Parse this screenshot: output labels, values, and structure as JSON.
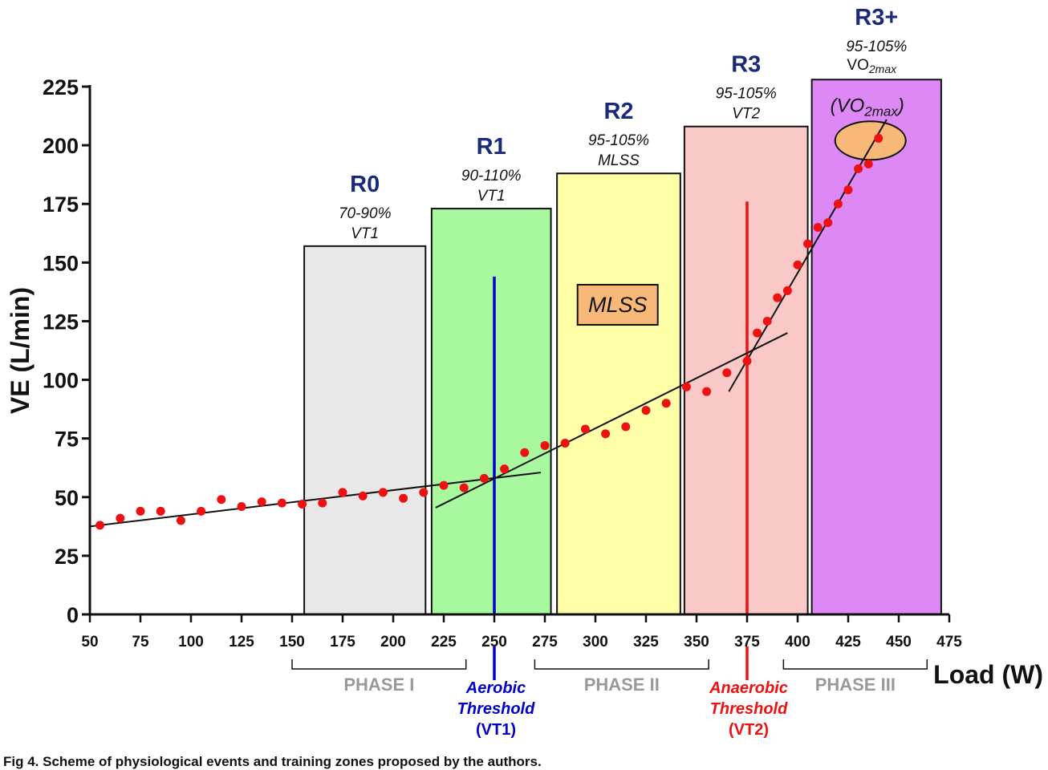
{
  "chart_data": {
    "type": "scatter",
    "ylabel": "VE (L/min)",
    "xlabel": "Load (W)",
    "xlim": [
      50,
      475
    ],
    "ylim": [
      0,
      225
    ],
    "x_ticks": [
      50,
      75,
      100,
      125,
      150,
      175,
      200,
      225,
      250,
      275,
      300,
      325,
      350,
      375,
      400,
      425,
      450,
      475
    ],
    "y_ticks": [
      0,
      25,
      50,
      75,
      100,
      125,
      150,
      175,
      200,
      225
    ],
    "zones": [
      {
        "name": "R0",
        "range": "70-90%",
        "ref": "VT1",
        "x_start": 156,
        "x_end": 216,
        "top": 157,
        "color": "#e8e8e8"
      },
      {
        "name": "R1",
        "range": "90-110%",
        "ref": "VT1",
        "x_start": 219,
        "x_end": 278,
        "top": 173,
        "color": "#a8f8a0"
      },
      {
        "name": "R2",
        "range": "95-105%",
        "ref": "MLSS",
        "x_start": 281,
        "x_end": 342,
        "top": 188,
        "color": "#ffffa8"
      },
      {
        "name": "R3",
        "range": "95-105%",
        "ref": "VT2",
        "x_start": 344,
        "x_end": 405,
        "top": 208,
        "color": "#fbc8c8"
      },
      {
        "name": "R3+",
        "range": "95-105%",
        "ref_main": "VO",
        "ref_sub": "2max",
        "x_start": 407,
        "x_end": 471,
        "top": 228,
        "color": "#dd88f5"
      }
    ],
    "points": [
      [
        55,
        38
      ],
      [
        65,
        41
      ],
      [
        75,
        44
      ],
      [
        85,
        44
      ],
      [
        95,
        40
      ],
      [
        105,
        44
      ],
      [
        115,
        49
      ],
      [
        125,
        46
      ],
      [
        135,
        48
      ],
      [
        145,
        47.5
      ],
      [
        155,
        47
      ],
      [
        165,
        47.5
      ],
      [
        175,
        52
      ],
      [
        185,
        50.5
      ],
      [
        195,
        52
      ],
      [
        205,
        49.5
      ],
      [
        215,
        52
      ],
      [
        225,
        55
      ],
      [
        235,
        54
      ],
      [
        245,
        58
      ],
      [
        255,
        62
      ],
      [
        265,
        69
      ],
      [
        275,
        72
      ],
      [
        285,
        73
      ],
      [
        295,
        79
      ],
      [
        305,
        77
      ],
      [
        315,
        80
      ],
      [
        325,
        87
      ],
      [
        335,
        90
      ],
      [
        345,
        97
      ],
      [
        355,
        95
      ],
      [
        365,
        103
      ],
      [
        375,
        108
      ],
      [
        380,
        120
      ],
      [
        385,
        125
      ],
      [
        390,
        135
      ],
      [
        395,
        138
      ],
      [
        400,
        149
      ],
      [
        405,
        158
      ],
      [
        410,
        165
      ],
      [
        415,
        167
      ],
      [
        420,
        175
      ],
      [
        425,
        181
      ],
      [
        430,
        190
      ],
      [
        435,
        192
      ],
      [
        440,
        203
      ]
    ],
    "fit_lines": [
      {
        "from": [
          50,
          37.5
        ],
        "to": [
          273,
          60.5
        ]
      },
      {
        "from": [
          221,
          45.5
        ],
        "to": [
          395,
          120
        ]
      },
      {
        "from": [
          366,
          95
        ],
        "to": [
          444,
          211
        ]
      }
    ],
    "thresholds": [
      {
        "x": 250,
        "y_top": 144,
        "color": "#0000cc",
        "label_lines": [
          "Aerobic",
          "Threshold",
          "(VT1)"
        ]
      },
      {
        "x": 375,
        "y_top": 176,
        "color": "#ee1111",
        "label_lines": [
          "Anaerobic",
          "Threshold",
          "(VT2)"
        ]
      }
    ],
    "phases": [
      {
        "label": "PHASE I",
        "x_start": 150,
        "x_end": 236
      },
      {
        "label": "PHASE II",
        "x_start": 270,
        "x_end": 356
      },
      {
        "label": "PHASE III",
        "x_start": 393,
        "x_end": 464
      }
    ],
    "annotations": {
      "mlss_box": {
        "text": "MLSS",
        "x": 311,
        "y": 132
      },
      "vo2max_main": "(VO",
      "vo2max_sub": "2max",
      "vo2max_close": ")",
      "vo2max_ellipse": {
        "x": 436,
        "y": 202
      }
    },
    "point_color": "#ee1111",
    "caption": "Fig 4. Scheme of physiological events and training zones proposed by the authors."
  }
}
